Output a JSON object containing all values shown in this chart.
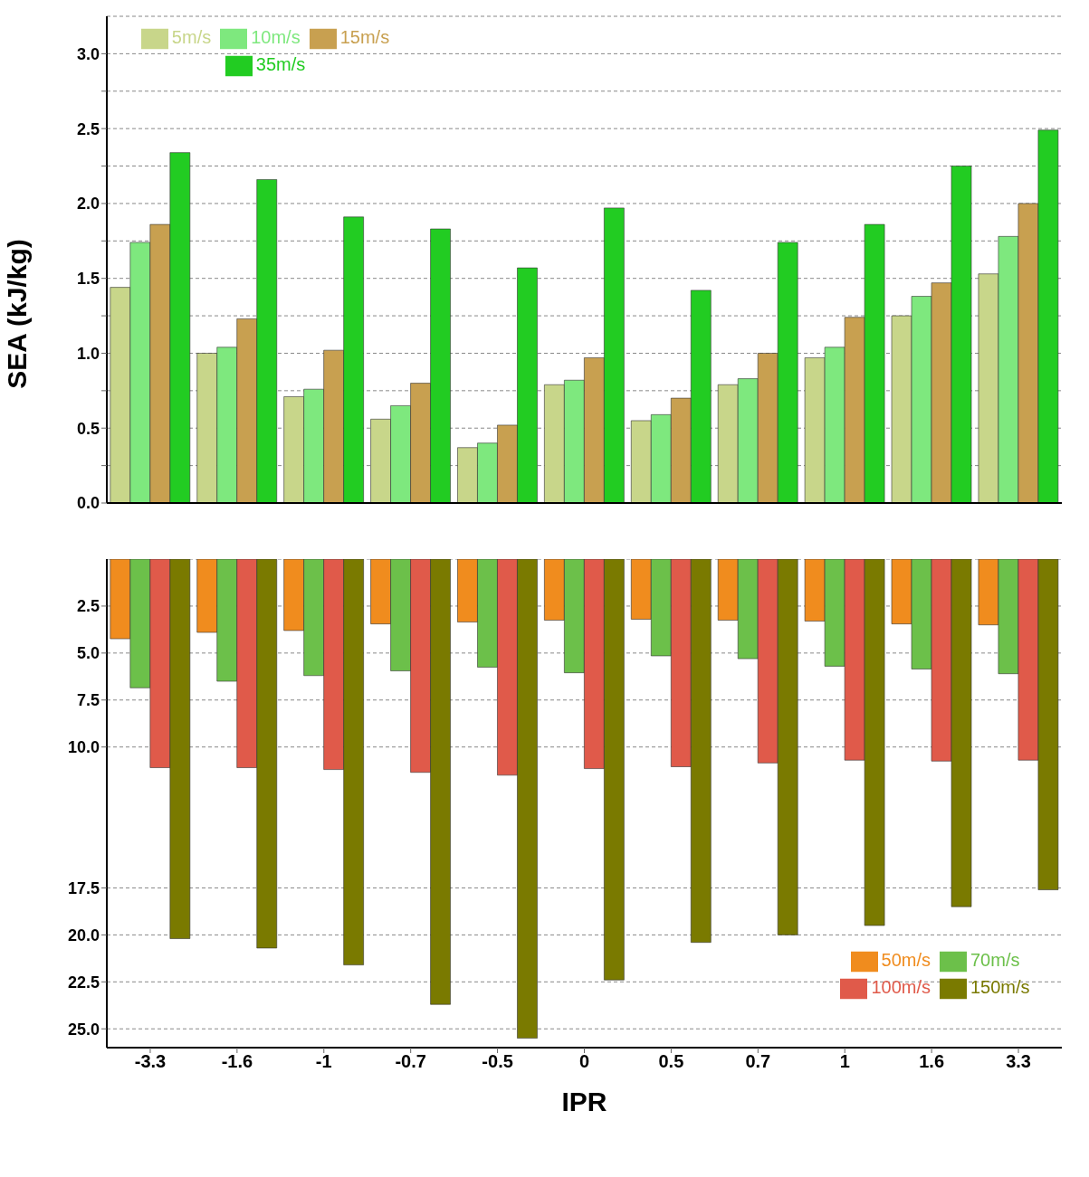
{
  "chart_data": [
    {
      "type": "bar",
      "ylabel": "SEA (kJ/kg)",
      "categories": [
        "-3.3",
        "-1.6",
        "-1",
        "-0.7",
        "-0.5",
        "0",
        "0.5",
        "0.7",
        "1",
        "1.6",
        "3.3"
      ],
      "series": [
        {
          "name": "5m/s",
          "color": "#c8d68a",
          "values": [
            1.44,
            1.0,
            0.71,
            0.56,
            0.37,
            0.79,
            0.55,
            0.79,
            0.97,
            1.25,
            1.53
          ]
        },
        {
          "name": "10m/s",
          "color": "#7ee87e",
          "values": [
            1.74,
            1.04,
            0.76,
            0.65,
            0.4,
            0.82,
            0.59,
            0.83,
            1.04,
            1.38,
            1.78
          ]
        },
        {
          "name": "15m/s",
          "color": "#c8a050",
          "values": [
            1.86,
            1.23,
            1.02,
            0.8,
            0.52,
            0.97,
            0.7,
            1.0,
            1.24,
            1.47,
            2.0
          ]
        },
        {
          "name": "35m/s",
          "color": "#22cc22",
          "values": [
            2.34,
            2.16,
            1.91,
            1.83,
            1.57,
            1.97,
            1.42,
            1.74,
            1.86,
            2.25,
            2.49
          ]
        }
      ],
      "ylim": [
        0,
        3.25
      ],
      "yticks": [
        {
          "value": 0,
          "label": "0.0"
        },
        {
          "value": 0.25,
          "label": null
        },
        {
          "value": 0.5,
          "label": "0.5"
        },
        {
          "value": 0.75,
          "label": null
        },
        {
          "value": 1,
          "label": "1.0"
        },
        {
          "value": 1.25,
          "label": null
        },
        {
          "value": 1.5,
          "label": "1.5"
        },
        {
          "value": 1.75,
          "label": null
        },
        {
          "value": 2,
          "label": "2.0"
        },
        {
          "value": 2.25,
          "label": null
        },
        {
          "value": 2.5,
          "label": "2.5"
        },
        {
          "value": 2.75,
          "label": null
        },
        {
          "value": 3,
          "label": "3.0"
        }
      ],
      "grid": "y",
      "legend": "top left",
      "tick_labels": "y"
    },
    {
      "type": "bar",
      "xlabel": "IPR",
      "categories": [
        "-3.3",
        "-1.6",
        "-1",
        "-0.7",
        "-0.5",
        "0",
        "0.5",
        "0.7",
        "1",
        "1.6",
        "3.3"
      ],
      "series": [
        {
          "name": "50m/s",
          "color": "#f08c1e",
          "values": [
            4.24,
            3.9,
            3.8,
            3.45,
            3.35,
            3.25,
            3.2,
            3.25,
            3.3,
            3.45,
            3.5
          ]
        },
        {
          "name": "70m/s",
          "color": "#6cc04a",
          "values": [
            6.85,
            6.5,
            6.2,
            5.95,
            5.75,
            6.05,
            5.15,
            5.3,
            5.7,
            5.85,
            6.1
          ]
        },
        {
          "name": "100m/s",
          "color": "#e05a4a",
          "values": [
            11.1,
            11.1,
            11.2,
            11.35,
            11.5,
            11.15,
            11.05,
            10.85,
            10.7,
            10.75,
            10.7
          ]
        },
        {
          "name": "150m/s",
          "color": "#7a7a00",
          "values": [
            20.2,
            20.7,
            21.6,
            23.7,
            25.5,
            22.4,
            20.4,
            20.0,
            19.5,
            18.5,
            17.6
          ]
        }
      ],
      "ylim": [
        26,
        0
      ],
      "yticks": [
        2.5,
        {
          "value": 5,
          "label": "5.0"
        },
        7.5,
        {
          "value": 10,
          "label": "10.0"
        },
        17.5,
        {
          "value": 20,
          "label": "20.0"
        },
        22.5,
        {
          "value": 25,
          "label": "25.0"
        }
      ],
      "grid": "y",
      "legend": "bottom right"
    }
  ]
}
